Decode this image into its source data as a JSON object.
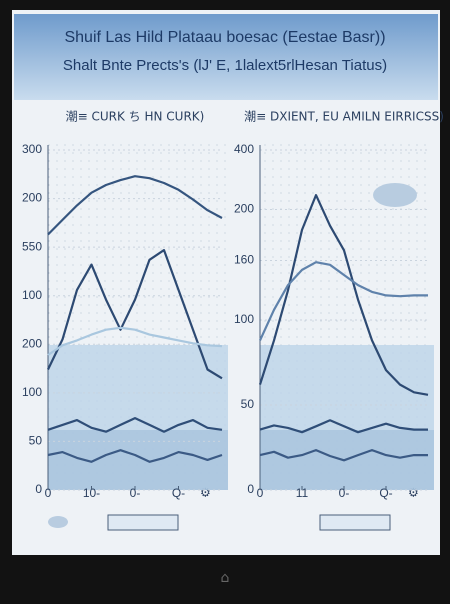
{
  "header": {
    "title": "Shuif Las Hild Plataau boesac (Eestae Basr))",
    "subtitle": "Shalt Bnte Prects's (lJ' E, 1lalext5rlHesan Tiatus)"
  },
  "chart_data": [
    {
      "type": "line",
      "title": "潮≡ CURK ち HN CURK)",
      "x": [
        0,
        1,
        2,
        3,
        4,
        5,
        6,
        7,
        8,
        9,
        10,
        11,
        12
      ],
      "xlim": [
        0,
        12
      ],
      "xticks": [
        0,
        {
          "value": 3,
          "label": "10-"
        },
        {
          "value": 6,
          "label": "0-"
        },
        {
          "value": 9,
          "label": "Q-"
        }
      ],
      "ylim": [
        0,
        350
      ],
      "yticks": [
        0,
        50,
        100,
        {
          "value": 150,
          "label": "200"
        },
        {
          "value": 200,
          "label": "100"
        },
        {
          "value": 250,
          "label": "550"
        },
        {
          "value": 300,
          "label": "200"
        },
        {
          "value": 350,
          "label": "300"
        }
      ],
      "series": [
        {
          "color": "#35557f",
          "values": [
            263,
            278,
            293,
            306,
            314,
            319,
            323,
            321,
            316,
            309,
            299,
            288,
            280
          ]
        },
        {
          "color": "#2d4a73",
          "values": [
            124,
            155,
            206,
            232,
            196,
            165,
            196,
            237,
            247,
            206,
            165,
            124,
            115
          ]
        },
        {
          "color": "#a9c7df",
          "values": [
            139,
            149,
            154,
            160,
            165,
            167,
            165,
            160,
            157,
            154,
            151,
            149,
            148
          ]
        },
        {
          "color": "#2f4e78",
          "values": [
            62,
            67,
            72,
            64,
            60,
            67,
            74,
            67,
            60,
            67,
            72,
            64,
            62
          ]
        },
        {
          "color": "#3b5a85",
          "values": [
            36,
            39,
            33,
            29,
            36,
            41,
            36,
            29,
            33,
            39,
            36,
            31,
            36
          ]
        }
      ]
    },
    {
      "type": "line",
      "title": "潮≡ DXIENT, EU AMILN EIRRICSS)",
      "x": [
        0,
        1,
        2,
        3,
        4,
        5,
        6,
        7,
        8,
        9,
        10,
        11,
        12
      ],
      "xlim": [
        0,
        12
      ],
      "xticks": [
        0,
        {
          "value": 3,
          "label": "11"
        },
        {
          "value": 6,
          "label": "0-"
        },
        {
          "value": 9,
          "label": "Q-"
        }
      ],
      "ylim": [
        0,
        400
      ],
      "yticks": [
        0,
        {
          "value": 100,
          "label": "50"
        },
        {
          "value": 200,
          "label": "100"
        },
        {
          "value": 270,
          "label": "160"
        },
        {
          "value": 330,
          "label": "200"
        },
        400
      ],
      "series": [
        {
          "color": "#2d4a73",
          "values": [
            124,
            176,
            235,
            306,
            347,
            311,
            282,
            224,
            176,
            141,
            124,
            115,
            112
          ]
        },
        {
          "color": "#5f82ab",
          "values": [
            176,
            212,
            241,
            259,
            268,
            265,
            253,
            241,
            233,
            229,
            228,
            229,
            229
          ]
        },
        {
          "color": "#2f4e78",
          "values": [
            71,
            76,
            73,
            68,
            75,
            82,
            75,
            68,
            73,
            78,
            73,
            71,
            71
          ]
        },
        {
          "color": "#3b5a85",
          "values": [
            41,
            45,
            38,
            41,
            47,
            40,
            35,
            41,
            47,
            41,
            38,
            41,
            41
          ]
        }
      ]
    }
  ]
}
